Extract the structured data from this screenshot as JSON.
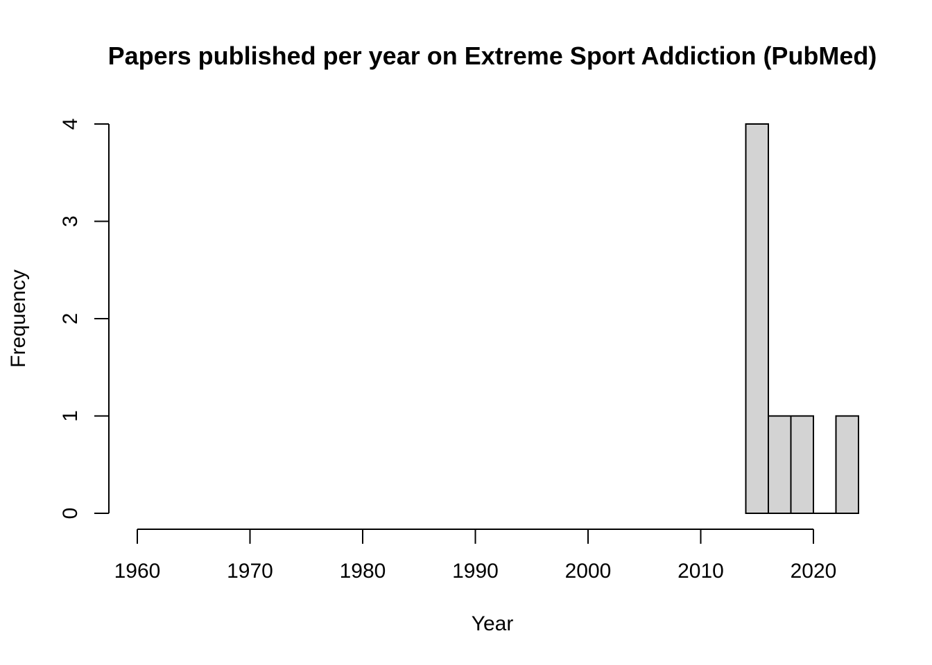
{
  "chart_data": {
    "type": "bar",
    "title": "Papers published per year on Extreme Sport Addiction (PubMed)",
    "xlabel": "Year",
    "ylabel": "Frequency",
    "bins": [
      {
        "start": 2014,
        "end": 2016,
        "value": 4
      },
      {
        "start": 2016,
        "end": 2018,
        "value": 1
      },
      {
        "start": 2018,
        "end": 2020,
        "value": 1
      },
      {
        "start": 2020,
        "end": 2022,
        "value": 0
      },
      {
        "start": 2022,
        "end": 2024,
        "value": 1
      }
    ],
    "x_ticks": [
      1960,
      1970,
      1980,
      1990,
      2000,
      2010,
      2020
    ],
    "y_ticks": [
      0,
      1,
      2,
      3,
      4
    ],
    "xlim": [
      1960,
      2024
    ],
    "ylim": [
      0,
      4
    ],
    "grid": false,
    "bar_color": "#d3d3d3",
    "edge_color": "#000000"
  }
}
